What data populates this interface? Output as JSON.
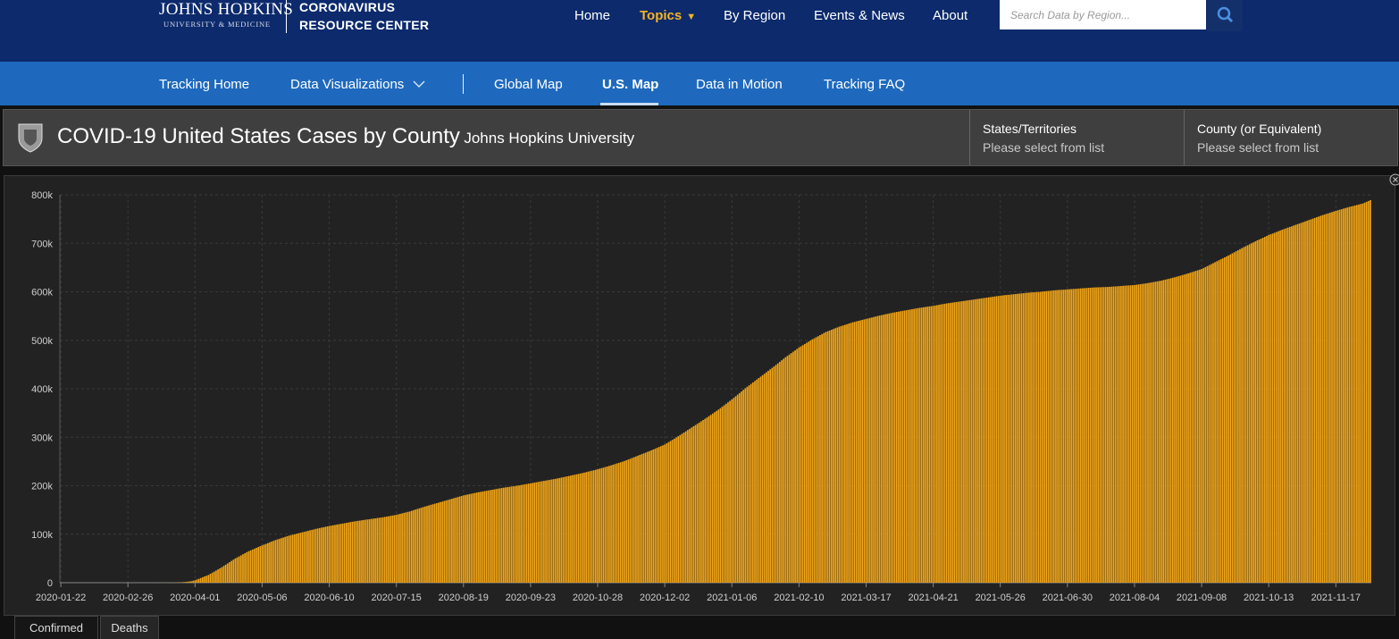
{
  "header": {
    "logo_line1": "JOHNS HOPKINS",
    "logo_line2": "UNIVERSITY & MEDICINE",
    "site_line1": "CORONAVIRUS",
    "site_line2": "RESOURCE CENTER",
    "nav": [
      "Home",
      "Topics",
      "By Region",
      "Events & News",
      "About"
    ],
    "search_placeholder": "Search Data by Region..."
  },
  "subnav": [
    "Tracking Home",
    "Data Visualizations",
    "Global Map",
    "U.S. Map",
    "Data in Motion",
    "Tracking FAQ"
  ],
  "panel": {
    "title": "COVID-19 United States Cases by County",
    "subtitle": "Johns Hopkins University",
    "selectors": [
      {
        "label": "States/Territories",
        "hint": "Please select from list"
      },
      {
        "label": "County (or Equivalent)",
        "hint": "Please select from list"
      }
    ]
  },
  "tabs": [
    "Confirmed",
    "Deaths"
  ],
  "chart_data": {
    "type": "bar",
    "color": "#f2a516",
    "grid": true,
    "ylim": [
      0,
      800000
    ],
    "yticks": [
      0,
      {
        "value": 100000,
        "label": "100k"
      },
      {
        "value": 200000,
        "label": "200k"
      },
      {
        "value": 300000,
        "label": "300k"
      },
      {
        "value": 400000,
        "label": "400k"
      },
      {
        "value": 500000,
        "label": "500k"
      },
      {
        "value": 600000,
        "label": "600k"
      },
      {
        "value": 700000,
        "label": "700k"
      },
      {
        "value": 800000,
        "label": "800k"
      }
    ],
    "categories": [
      "2020-01-22",
      null,
      null,
      null,
      null,
      null,
      null,
      null,
      null,
      null,
      null,
      null,
      null,
      null,
      null,
      null,
      null,
      null,
      null,
      null,
      null,
      null,
      null,
      null,
      null,
      null,
      null,
      null,
      null,
      null,
      null,
      null,
      null,
      null,
      null,
      "2020-02-26",
      null,
      null,
      null,
      null,
      null,
      null,
      null,
      null,
      null,
      null,
      null,
      null,
      null,
      null,
      null,
      null,
      null,
      null,
      null,
      null,
      null,
      null,
      null,
      null,
      null,
      null,
      null,
      null,
      null,
      null,
      null,
      null,
      null,
      null,
      "2020-04-01",
      null,
      null,
      null,
      null,
      null,
      null,
      null,
      null,
      null,
      null,
      null,
      null,
      null,
      null,
      null,
      null,
      null,
      null,
      null,
      null,
      null,
      null,
      null,
      null,
      null,
      null,
      null,
      null,
      null,
      null,
      null,
      null,
      null,
      null,
      "2020-05-06",
      null,
      null,
      null,
      null,
      null,
      null,
      null,
      null,
      null,
      null,
      null,
      null,
      null,
      null,
      null,
      null,
      null,
      null,
      null,
      null,
      null,
      null,
      null,
      null,
      null,
      null,
      null,
      null,
      null,
      null,
      null,
      null,
      null,
      null,
      "2020-06-10",
      null,
      null,
      null,
      null,
      null,
      null,
      null,
      null,
      null,
      null,
      null,
      null,
      null,
      null,
      null,
      null,
      null,
      null,
      null,
      null,
      null,
      null,
      null,
      null,
      null,
      null,
      null,
      null,
      null,
      null,
      null,
      null,
      null,
      null,
      "2020-07-15",
      null,
      null,
      null,
      null,
      null,
      null,
      null,
      null,
      null,
      null,
      null,
      null,
      null,
      null,
      null,
      null,
      null,
      null,
      null,
      null,
      null,
      null,
      null,
      null,
      null,
      null,
      null,
      null,
      null,
      null,
      null,
      null,
      null,
      null,
      "2020-08-19",
      null,
      null,
      null,
      null,
      null,
      null,
      null,
      null,
      null,
      null,
      null,
      null,
      null,
      null,
      null,
      null,
      null,
      null,
      null,
      null,
      null,
      null,
      null,
      null,
      null,
      null,
      null,
      null,
      null,
      null,
      null,
      null,
      null,
      null,
      "2020-09-23",
      null,
      null,
      null,
      null,
      null,
      null,
      null,
      null,
      null,
      null,
      null,
      null,
      null,
      null,
      null,
      null,
      null,
      null,
      null,
      null,
      null,
      null,
      null,
      null,
      null,
      null,
      null,
      null,
      null,
      null,
      null,
      null,
      null,
      null,
      "2020-10-28",
      null,
      null,
      null,
      null,
      null,
      null,
      null,
      null,
      null,
      null,
      null,
      null,
      null,
      null,
      null,
      null,
      null,
      null,
      null,
      null,
      null,
      null,
      null,
      null,
      null,
      null,
      null,
      null,
      null,
      null,
      null,
      null,
      null,
      null,
      "2020-12-02",
      null,
      null,
      null,
      null,
      null,
      null,
      null,
      null,
      null,
      null,
      null,
      null,
      null,
      null,
      null,
      null,
      null,
      null,
      null,
      null,
      null,
      null,
      null,
      null,
      null,
      null,
      null,
      null,
      null,
      null,
      null,
      null,
      null,
      null,
      "2021-01-06",
      null,
      null,
      null,
      null,
      null,
      null,
      null,
      null,
      null,
      null,
      null,
      null,
      null,
      null,
      null,
      null,
      null,
      null,
      null,
      null,
      null,
      null,
      null,
      null,
      null,
      null,
      null,
      null,
      null,
      null,
      null,
      null,
      null,
      null,
      "2021-02-10",
      null,
      null,
      null,
      null,
      null,
      null,
      null,
      null,
      null,
      null,
      null,
      null,
      null,
      null,
      null,
      null,
      null,
      null,
      null,
      null,
      null,
      null,
      null,
      null,
      null,
      null,
      null,
      null,
      null,
      null,
      null,
      null,
      null,
      null,
      "2021-03-17",
      null,
      null,
      null,
      null,
      null,
      null,
      null,
      null,
      null,
      null,
      null,
      null,
      null,
      null,
      null,
      null,
      null,
      null,
      null,
      null,
      null,
      null,
      null,
      null,
      null,
      null,
      null,
      null,
      null,
      null,
      null,
      null,
      null,
      null,
      "2021-04-21",
      null,
      null,
      null,
      null,
      null,
      null,
      null,
      null,
      null,
      null,
      null,
      null,
      null,
      null,
      null,
      null,
      null,
      null,
      null,
      null,
      null,
      null,
      null,
      null,
      null,
      null,
      null,
      null,
      null,
      null,
      null,
      null,
      null,
      null,
      "2021-05-26",
      null,
      null,
      null,
      null,
      null,
      null,
      null,
      null,
      null,
      null,
      null,
      null,
      null,
      null,
      null,
      null,
      null,
      null,
      null,
      null,
      null,
      null,
      null,
      null,
      null,
      null,
      null,
      null,
      null,
      null,
      null,
      null,
      null,
      null,
      "2021-06-30",
      null,
      null,
      null,
      null,
      null,
      null,
      null,
      null,
      null,
      null,
      null,
      null,
      null,
      null,
      null,
      null,
      null,
      null,
      null,
      null,
      null,
      null,
      null,
      null,
      null,
      null,
      null,
      null,
      null,
      null,
      null,
      null,
      null,
      null,
      "2021-08-04",
      null,
      null,
      null,
      null,
      null,
      null,
      null,
      null,
      null,
      null,
      null,
      null,
      null,
      null,
      null,
      null,
      null,
      null,
      null,
      null,
      null,
      null,
      null,
      null,
      null,
      null,
      null,
      null,
      null,
      null,
      null,
      null,
      null,
      null,
      "2021-09-08",
      null,
      null,
      null,
      null,
      null,
      null,
      null,
      null,
      null,
      null,
      null,
      null,
      null,
      null,
      null,
      null,
      null,
      null,
      null,
      null,
      null,
      null,
      null,
      null,
      null,
      null,
      null,
      null,
      null,
      null,
      null,
      null,
      null,
      null,
      "2021-10-13",
      null,
      null,
      null,
      null,
      null,
      null,
      null,
      null,
      null,
      null,
      null,
      null,
      null,
      null,
      null,
      null,
      null,
      null,
      null,
      null,
      null,
      null,
      null,
      null,
      null,
      null,
      null,
      null,
      null,
      null,
      null,
      null,
      null,
      null,
      "2021-11-17",
      null,
      null,
      null,
      null,
      null,
      null,
      null,
      null,
      null,
      null,
      null,
      null,
      null,
      null,
      null,
      null,
      null,
      null
    ],
    "values": [
      0,
      0,
      0,
      0,
      0,
      0,
      0,
      0,
      0,
      0,
      0,
      0,
      0,
      0,
      0,
      0,
      0,
      0,
      0,
      0,
      0,
      0,
      0,
      0,
      0,
      0,
      0,
      0,
      0,
      0,
      0,
      0,
      0,
      0,
      0,
      0,
      0,
      0,
      0,
      1,
      1,
      6,
      9,
      11,
      12,
      14,
      17,
      19,
      22,
      31,
      40,
      47,
      54,
      57,
      67,
      89,
      114,
      150,
      220,
      300,
      400,
      550,
      750,
      950,
      1250,
      1600,
      2000,
      2500,
      3000,
      4000,
      5000,
      6600,
      8100,
      9700,
      11300,
      12900,
      14400,
      16000,
      18300,
      20600,
      22900,
      25100,
      27400,
      29700,
      32000,
      34600,
      37100,
      39700,
      42300,
      44900,
      47400,
      50000,
      52100,
      54300,
      56400,
      58600,
      60700,
      62900,
      65000,
      66700,
      68400,
      70100,
      71900,
      73600,
      75300,
      77000,
      78600,
      80100,
      81700,
      83300,
      84900,
      86400,
      88000,
      89300,
      90600,
      91900,
      93100,
      94400,
      95700,
      97000,
      98000,
      99000,
      100000,
      101000,
      102000,
      103000,
      104000,
      105000,
      106000,
      107000,
      108000,
      109000,
      110000,
      111000,
      111900,
      112700,
      113600,
      114400,
      115300,
      116100,
      117000,
      117700,
      118400,
      119100,
      119900,
      120600,
      121300,
      122000,
      122700,
      123400,
      124100,
      124900,
      125600,
      126300,
      127000,
      127600,
      128100,
      128700,
      129300,
      129900,
      130400,
      131000,
      131600,
      132100,
      132700,
      133300,
      133900,
      134400,
      135000,
      135700,
      136400,
      137100,
      137900,
      138600,
      139300,
      140000,
      141000,
      142000,
      143000,
      144000,
      145000,
      146000,
      147000,
      148300,
      149600,
      150900,
      152100,
      153400,
      154700,
      156000,
      157100,
      158300,
      159400,
      160600,
      161700,
      162900,
      164000,
      165100,
      166300,
      167400,
      168600,
      169700,
      170900,
      172000,
      173100,
      174300,
      175400,
      176600,
      177700,
      178900,
      180000,
      180900,
      181700,
      182600,
      183400,
      184300,
      185100,
      186000,
      186700,
      187400,
      188100,
      188900,
      189600,
      190300,
      191000,
      191700,
      192400,
      193100,
      193900,
      194600,
      195300,
      196000,
      196600,
      197100,
      197700,
      198300,
      198900,
      199400,
      200000,
      200700,
      201400,
      202100,
      202900,
      203600,
      204300,
      205000,
      205700,
      206400,
      207100,
      207900,
      208600,
      209300,
      210000,
      210700,
      211400,
      212100,
      212900,
      213600,
      214300,
      215000,
      215900,
      216700,
      217600,
      218400,
      219300,
      220100,
      221000,
      221900,
      222700,
      223600,
      224400,
      225300,
      226100,
      227000,
      228000,
      229000,
      230000,
      231000,
      232000,
      233000,
      234000,
      235100,
      236300,
      237400,
      238600,
      239700,
      240900,
      242000,
      243300,
      244600,
      245900,
      247100,
      248400,
      249700,
      251000,
      252600,
      254100,
      255700,
      257300,
      258900,
      260400,
      262000,
      263600,
      265100,
      266700,
      268300,
      269900,
      271400,
      273000,
      274700,
      276400,
      278100,
      279900,
      281600,
      283300,
      285000,
      287400,
      289900,
      292300,
      294700,
      297100,
      299600,
      302000,
      304600,
      307100,
      309700,
      312300,
      314900,
      317400,
      320000,
      322600,
      325100,
      327700,
      330300,
      332900,
      335400,
      338000,
      340700,
      343400,
      346100,
      348900,
      351600,
      354300,
      357000,
      360000,
      363000,
      366000,
      369000,
      372000,
      375000,
      378000,
      381300,
      384600,
      387900,
      391100,
      394400,
      397700,
      401000,
      404000,
      407000,
      410000,
      413000,
      416000,
      419000,
      422000,
      425000,
      428000,
      431000,
      434000,
      437000,
      440000,
      443000,
      446100,
      449300,
      452400,
      455600,
      458700,
      461900,
      465000,
      467900,
      470700,
      473600,
      476400,
      479300,
      482100,
      485000,
      487400,
      489900,
      492300,
      494700,
      497100,
      499600,
      502000,
      504100,
      506300,
      508400,
      510600,
      512700,
      514900,
      517000,
      518600,
      520100,
      521700,
      523300,
      524900,
      526400,
      528000,
      529300,
      530600,
      531900,
      533100,
      534400,
      535700,
      537000,
      538000,
      539000,
      540000,
      541000,
      542000,
      543000,
      544000,
      545000,
      546000,
      547000,
      548000,
      549000,
      550000,
      551000,
      551900,
      552700,
      553600,
      554400,
      555300,
      556100,
      557000,
      557700,
      558400,
      559100,
      559900,
      560600,
      561300,
      562000,
      562700,
      563400,
      564100,
      564900,
      565600,
      566300,
      567000,
      567600,
      568100,
      568700,
      569300,
      569900,
      570400,
      571000,
      571700,
      572400,
      573100,
      573900,
      574600,
      575300,
      576000,
      576600,
      577100,
      577700,
      578300,
      578900,
      579400,
      580000,
      580600,
      581100,
      581700,
      582300,
      582900,
      583400,
      584000,
      584600,
      585100,
      585700,
      586300,
      586900,
      587400,
      588000,
      588600,
      589100,
      589700,
      590300,
      590900,
      591400,
      592000,
      592400,
      592900,
      593300,
      593700,
      594100,
      594600,
      595000,
      595400,
      595900,
      596300,
      596700,
      597100,
      597600,
      598000,
      598300,
      598600,
      598900,
      599100,
      599400,
      599700,
      600000,
      600400,
      600900,
      601300,
      601700,
      602100,
      602600,
      603000,
      603300,
      603600,
      603900,
      604100,
      604400,
      604700,
      605000,
      605300,
      605600,
      605900,
      606100,
      606400,
      606700,
      607000,
      607300,
      607600,
      607900,
      608100,
      608400,
      608700,
      609000,
      609100,
      609300,
      609400,
      609600,
      609700,
      609900,
      610000,
      610300,
      610600,
      610900,
      611100,
      611400,
      611700,
      612000,
      612300,
      612600,
      612900,
      613100,
      613400,
      613700,
      614000,
      614600,
      615100,
      615700,
      616300,
      616900,
      617400,
      618000,
      618700,
      619400,
      620100,
      620900,
      621600,
      622300,
      623000,
      624000,
      625000,
      626000,
      627000,
      628000,
      629000,
      630000,
      631100,
      632300,
      633400,
      634600,
      635700,
      636900,
      638000,
      639300,
      640600,
      641900,
      643100,
      644400,
      645700,
      647000,
      649000,
      651000,
      653000,
      655000,
      657000,
      659000,
      661000,
      663000,
      665000,
      667000,
      669000,
      671000,
      673000,
      675000,
      677100,
      679300,
      681400,
      683600,
      685700,
      687900,
      690000,
      692000,
      694000,
      696000,
      698000,
      700000,
      702000,
      704000,
      705900,
      707700,
      709600,
      711400,
      713300,
      715100,
      717000,
      718600,
      720100,
      721700,
      723300,
      724900,
      726400,
      728000,
      729400,
      730900,
      732300,
      733700,
      735100,
      736600,
      738000,
      739400,
      740900,
      742300,
      743700,
      745100,
      746600,
      748000,
      749400,
      750900,
      752300,
      753700,
      755100,
      756600,
      758000,
      759300,
      760600,
      761900,
      763100,
      764400,
      765700,
      767000,
      768100,
      769300,
      770400,
      771600,
      772700,
      773900,
      775000,
      776000,
      777000,
      778000,
      779000,
      780000,
      781000,
      782000,
      783800,
      785500,
      787300,
      789000
    ]
  }
}
